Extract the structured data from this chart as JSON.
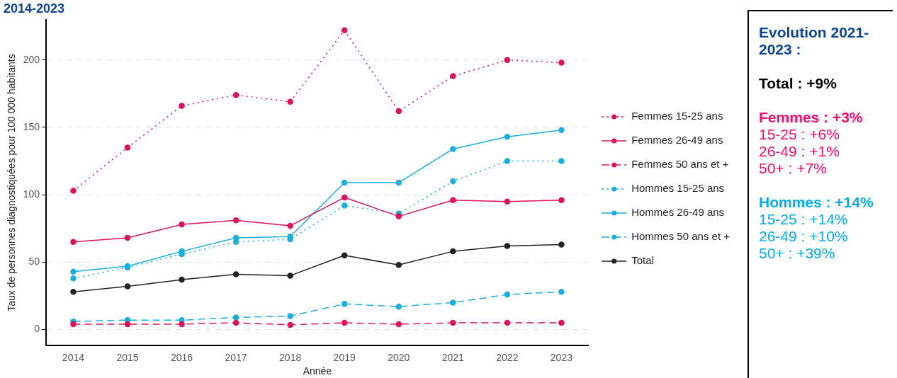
{
  "chart_data": {
    "type": "line",
    "title": "2014-2023",
    "xlabel": "Année",
    "ylabel": "Taux de personnes diagnostiquées pour 100 000 habitants",
    "categories": [
      "2014",
      "2015",
      "2016",
      "2017",
      "2018",
      "2019",
      "2020",
      "2021",
      "2022",
      "2023"
    ],
    "series": [
      {
        "name": "Femmes 15-25 ans",
        "color": "#e0105a",
        "line_style": "dotted",
        "values": [
          103,
          135,
          166,
          174,
          169,
          222,
          162,
          188,
          200,
          198
        ]
      },
      {
        "name": "Femmes 26-49 ans",
        "color": "#e0105a",
        "line_style": "solid",
        "values": [
          65,
          68,
          78,
          81,
          77,
          98,
          84,
          96,
          95,
          96
        ]
      },
      {
        "name": "Femmes 50 ans et +",
        "color": "#e0105a",
        "line_style": "dashed",
        "values": [
          4,
          4,
          4,
          5,
          3.5,
          5,
          4,
          5,
          5,
          5
        ]
      },
      {
        "name": "Hommes 15-25 ans",
        "color": "#1aafe0",
        "line_style": "dotted",
        "values": [
          38,
          46,
          56,
          65,
          67,
          92,
          86,
          110,
          125,
          125
        ]
      },
      {
        "name": "Hommes 26-49 ans",
        "color": "#1aafe0",
        "line_style": "solid",
        "values": [
          43,
          47,
          58,
          68,
          69,
          109,
          109,
          134,
          143,
          148
        ]
      },
      {
        "name": "Hommes 50 ans et +",
        "color": "#1aafe0",
        "line_style": "dashed",
        "values": [
          6,
          7,
          7,
          9,
          10,
          19,
          17,
          20,
          26,
          28
        ]
      },
      {
        "name": "Total",
        "color": "#222222",
        "line_style": "solid",
        "values": [
          28,
          32,
          37,
          41,
          40,
          55,
          48,
          58,
          62,
          63
        ]
      }
    ],
    "ylim": [
      -12,
      230
    ],
    "yticks": [
      0,
      50,
      100,
      150,
      200
    ],
    "grid": "y",
    "legend": "right",
    "marker": "circle",
    "annotations": [
      "Evolution 2021-2023 :",
      "Total : +9%",
      "Femmes : +3%",
      "15-25 : +6%",
      "26-49 : +1%",
      "50+ : +7%",
      "Hommes : +14%",
      "15-25 : +14%",
      "26-49 : +10%",
      "50+ : +39%"
    ]
  }
}
